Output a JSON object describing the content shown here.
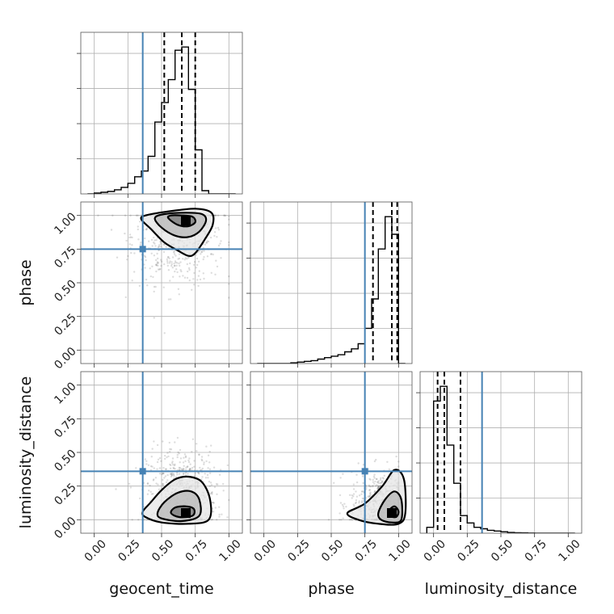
{
  "chart_data": {
    "type": "corner",
    "parameters": [
      "geocent_time",
      "phase",
      "luminosity_distance"
    ],
    "range": [
      -0.1,
      1.1
    ],
    "tick_values": [
      0.0,
      0.25,
      0.5,
      0.75,
      1.0
    ],
    "tick_labels": [
      "0.00",
      "0.25",
      "0.50",
      "0.75",
      "1.00"
    ],
    "truths": {
      "geocent_time": 0.36,
      "phase": 0.75,
      "luminosity_distance": 0.36
    },
    "truth_color": "#4682b4",
    "quantiles": {
      "geocent_time": [
        0.52,
        0.65,
        0.75
      ],
      "phase": [
        0.81,
        0.95,
        0.99
      ],
      "luminosity_distance": [
        0.03,
        0.08,
        0.2
      ]
    },
    "grid": true,
    "marginals": [
      {
        "parameter": "geocent_time",
        "bin_edges": [
          -0.05,
          0.0,
          0.05,
          0.1,
          0.15,
          0.2,
          0.25,
          0.3,
          0.35,
          0.4,
          0.45,
          0.5,
          0.55,
          0.6,
          0.65,
          0.7,
          0.75,
          0.8,
          0.85,
          0.9,
          0.95,
          1.0,
          1.05
        ],
        "counts": [
          0.0,
          0.5,
          1.0,
          1.5,
          2.5,
          4.0,
          6.5,
          10.5,
          14.0,
          23.0,
          44.0,
          56.0,
          70.0,
          88.0,
          90.0,
          64.0,
          27.0,
          2.0,
          0.0,
          0.0,
          0.0,
          0.0
        ]
      },
      {
        "parameter": "phase",
        "bin_edges": [
          -0.05,
          0.0,
          0.05,
          0.1,
          0.15,
          0.2,
          0.25,
          0.3,
          0.35,
          0.4,
          0.45,
          0.5,
          0.55,
          0.6,
          0.65,
          0.7,
          0.75,
          0.8,
          0.85,
          0.9,
          0.95,
          1.0,
          1.05
        ],
        "counts": [
          0.0,
          0.0,
          0.0,
          0.0,
          0.0,
          0.5,
          1.0,
          1.5,
          2.0,
          3.0,
          4.0,
          5.0,
          6.0,
          8.0,
          10.0,
          13.5,
          24.0,
          44.0,
          78.0,
          100.0,
          88.0,
          0.0
        ]
      },
      {
        "parameter": "luminosity_distance",
        "bin_edges": [
          -0.05,
          0.0,
          0.05,
          0.1,
          0.15,
          0.2,
          0.25,
          0.3,
          0.35,
          0.4,
          0.45,
          0.5,
          0.55,
          0.6,
          0.65,
          0.7,
          0.75,
          0.8,
          0.85,
          0.9,
          0.95,
          1.0,
          1.05
        ],
        "counts": [
          4.0,
          90.0,
          100.0,
          60.0,
          34.0,
          12.0,
          7.0,
          4.0,
          3.0,
          2.0,
          1.5,
          1.0,
          0.5,
          0.3,
          0.2,
          0.1,
          0.0,
          0.0,
          0.0,
          0.0,
          0.0,
          0.0
        ]
      }
    ],
    "joint": [
      {
        "x": "geocent_time",
        "y": "phase",
        "mode": [
          0.68,
          0.96
        ],
        "cloud": {
          "mean": [
            0.62,
            0.85
          ],
          "spread": [
            0.17,
            0.18
          ]
        },
        "contours": [
          [
            [
              0.55,
              0.98
            ],
            [
              0.62,
              0.93
            ],
            [
              0.7,
              0.92
            ],
            [
              0.75,
              0.95
            ],
            [
              0.73,
              0.99
            ],
            [
              0.65,
              1.0
            ],
            [
              0.57,
              1.0
            ]
          ],
          [
            [
              0.45,
              0.98
            ],
            [
              0.5,
              0.91
            ],
            [
              0.6,
              0.85
            ],
            [
              0.7,
              0.84
            ],
            [
              0.78,
              0.88
            ],
            [
              0.83,
              0.96
            ],
            [
              0.8,
              1.01
            ],
            [
              0.68,
              1.02
            ],
            [
              0.52,
              1.01
            ]
          ],
          [
            [
              0.35,
              0.97
            ],
            [
              0.42,
              0.9
            ],
            [
              0.52,
              0.8
            ],
            [
              0.62,
              0.74
            ],
            [
              0.7,
              0.7
            ],
            [
              0.75,
              0.72
            ],
            [
              0.82,
              0.82
            ],
            [
              0.88,
              0.93
            ],
            [
              0.87,
              1.02
            ],
            [
              0.75,
              1.05
            ],
            [
              0.55,
              1.03
            ],
            [
              0.38,
              1.0
            ]
          ]
        ]
      },
      {
        "x": "geocent_time",
        "y": "luminosity_distance",
        "mode": [
          0.68,
          0.05
        ],
        "cloud": {
          "mean": [
            0.65,
            0.2
          ],
          "spread": [
            0.13,
            0.17
          ]
        },
        "contours": [
          [
            [
              0.57,
              0.05
            ],
            [
              0.6,
              0.09
            ],
            [
              0.68,
              0.1
            ],
            [
              0.74,
              0.08
            ],
            [
              0.73,
              0.03
            ],
            [
              0.63,
              0.02
            ]
          ],
          [
            [
              0.47,
              0.05
            ],
            [
              0.52,
              0.13
            ],
            [
              0.62,
              0.2
            ],
            [
              0.72,
              0.21
            ],
            [
              0.78,
              0.15
            ],
            [
              0.78,
              0.03
            ],
            [
              0.65,
              -0.01
            ],
            [
              0.5,
              0.01
            ]
          ],
          [
            [
              0.36,
              0.06
            ],
            [
              0.42,
              0.13
            ],
            [
              0.5,
              0.22
            ],
            [
              0.6,
              0.3
            ],
            [
              0.7,
              0.32
            ],
            [
              0.8,
              0.28
            ],
            [
              0.86,
              0.15
            ],
            [
              0.85,
              0.0
            ],
            [
              0.7,
              -0.03
            ],
            [
              0.5,
              -0.02
            ],
            [
              0.38,
              0.02
            ]
          ]
        ]
      },
      {
        "x": "phase",
        "y": "luminosity_distance",
        "mode": [
          0.95,
          0.05
        ],
        "cloud": {
          "mean": [
            0.88,
            0.12
          ],
          "spread": [
            0.12,
            0.12
          ]
        },
        "contours": [
          [
            [
              0.93,
              0.07
            ],
            [
              0.97,
              0.1
            ],
            [
              1.0,
              0.06
            ],
            [
              0.98,
              0.02
            ],
            [
              0.93,
              0.03
            ]
          ],
          [
            [
              0.85,
              0.05
            ],
            [
              0.9,
              0.15
            ],
            [
              0.97,
              0.21
            ],
            [
              1.02,
              0.15
            ],
            [
              1.02,
              0.0
            ],
            [
              0.95,
              -0.02
            ],
            [
              0.87,
              0.0
            ]
          ],
          [
            [
              0.62,
              0.05
            ],
            [
              0.75,
              0.12
            ],
            [
              0.88,
              0.25
            ],
            [
              0.97,
              0.37
            ],
            [
              1.04,
              0.3
            ],
            [
              1.05,
              0.05
            ],
            [
              1.0,
              -0.03
            ],
            [
              0.85,
              -0.03
            ],
            [
              0.7,
              0.0
            ]
          ]
        ]
      }
    ]
  }
}
